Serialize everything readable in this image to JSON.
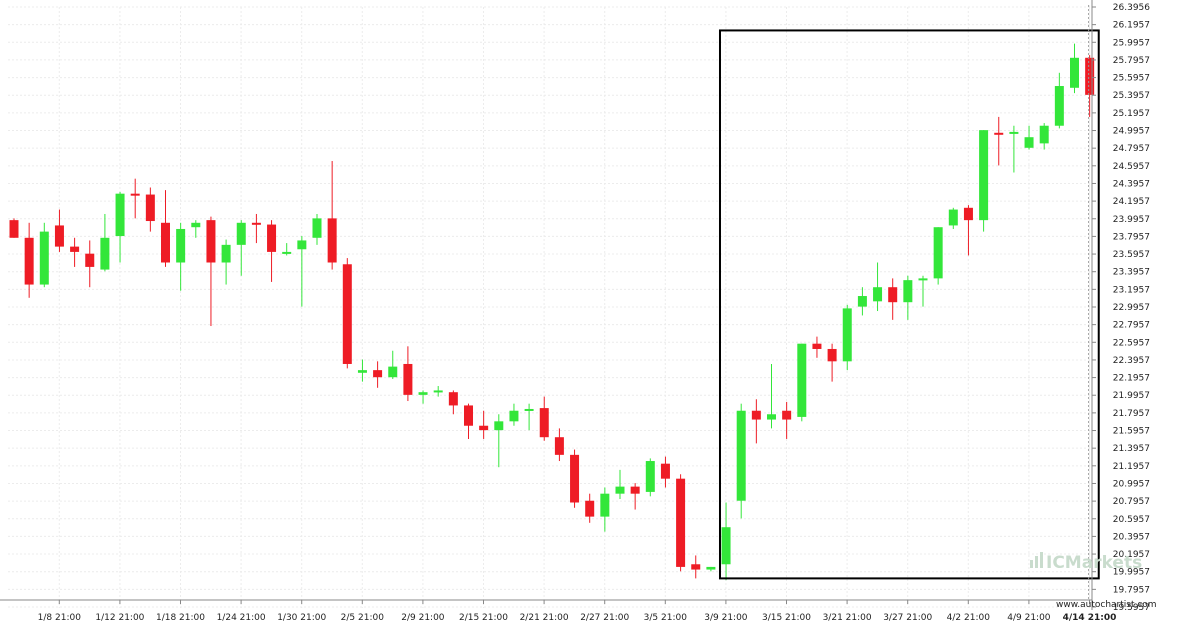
{
  "chart_data": {
    "type": "candlestick",
    "title": "",
    "xlabel": "",
    "ylabel": "",
    "ylim": [
      19.7957,
      26.3956
    ],
    "y_ticks": [
      "26.3956",
      "26.1957",
      "25.9957",
      "25.7957",
      "25.5957",
      "25.3957",
      "25.1957",
      "24.9957",
      "24.7957",
      "24.5957",
      "24.3957",
      "24.1957",
      "23.9957",
      "23.7957",
      "23.5957",
      "23.3957",
      "23.1957",
      "22.9957",
      "22.7957",
      "22.5957",
      "22.3957",
      "22.1957",
      "21.9957",
      "21.7957",
      "21.5957",
      "21.3957",
      "21.1957",
      "20.9957",
      "20.7957",
      "20.5957",
      "20.3957",
      "20.1957",
      "19.9957",
      "19.7957",
      "19.5957"
    ],
    "x_ticks": [
      "1/8 21:00",
      "1/12 21:00",
      "1/18 21:00",
      "1/24 21:00",
      "1/30 21:00",
      "2/5 21:00",
      "2/9 21:00",
      "2/15 21:00",
      "2/21 21:00",
      "2/27 21:00",
      "3/5 21:00",
      "3/9 21:00",
      "3/15 21:00",
      "3/21 21:00",
      "3/27 21:00",
      "4/2 21:00",
      "4/9 21:00",
      "4/14 21:00"
    ],
    "x_tick_index": [
      2,
      6,
      10,
      14,
      18,
      22,
      26,
      30,
      34,
      38,
      42,
      46,
      50,
      54,
      58,
      62,
      66,
      70
    ],
    "highlight_x_tick": "4/14 21:00",
    "candles": [
      {
        "o": 23.98,
        "h": 24.0,
        "l": 23.78,
        "c": 23.78
      },
      {
        "o": 23.78,
        "h": 23.95,
        "l": 23.1,
        "c": 23.25
      },
      {
        "o": 23.25,
        "h": 23.95,
        "l": 23.22,
        "c": 23.85
      },
      {
        "o": 23.92,
        "h": 24.1,
        "l": 23.62,
        "c": 23.68
      },
      {
        "o": 23.68,
        "h": 23.78,
        "l": 23.45,
        "c": 23.62
      },
      {
        "o": 23.6,
        "h": 23.75,
        "l": 23.22,
        "c": 23.45
      },
      {
        "o": 23.42,
        "h": 24.05,
        "l": 23.4,
        "c": 23.78
      },
      {
        "o": 23.8,
        "h": 24.3,
        "l": 23.5,
        "c": 24.28
      },
      {
        "o": 24.28,
        "h": 24.45,
        "l": 24.0,
        "c": 24.27
      },
      {
        "o": 24.27,
        "h": 24.35,
        "l": 23.85,
        "c": 23.97
      },
      {
        "o": 23.95,
        "h": 24.32,
        "l": 23.45,
        "c": 23.5
      },
      {
        "o": 23.5,
        "h": 23.95,
        "l": 23.18,
        "c": 23.88
      },
      {
        "o": 23.9,
        "h": 23.98,
        "l": 23.78,
        "c": 23.95
      },
      {
        "o": 23.98,
        "h": 24.02,
        "l": 22.78,
        "c": 23.5
      },
      {
        "o": 23.5,
        "h": 23.76,
        "l": 23.25,
        "c": 23.7
      },
      {
        "o": 23.7,
        "h": 23.98,
        "l": 23.35,
        "c": 23.95
      },
      {
        "o": 23.95,
        "h": 24.05,
        "l": 23.72,
        "c": 23.93
      },
      {
        "o": 23.93,
        "h": 23.98,
        "l": 23.28,
        "c": 23.62
      },
      {
        "o": 23.6,
        "h": 23.72,
        "l": 23.58,
        "c": 23.62
      },
      {
        "o": 23.65,
        "h": 23.8,
        "l": 23.0,
        "c": 23.75
      },
      {
        "o": 23.78,
        "h": 24.05,
        "l": 23.7,
        "c": 24.0
      },
      {
        "o": 24.0,
        "h": 24.65,
        "l": 23.42,
        "c": 23.5
      },
      {
        "o": 23.48,
        "h": 23.55,
        "l": 22.3,
        "c": 22.35
      },
      {
        "o": 22.25,
        "h": 22.4,
        "l": 22.15,
        "c": 22.28
      },
      {
        "o": 22.28,
        "h": 22.38,
        "l": 22.08,
        "c": 22.2
      },
      {
        "o": 22.2,
        "h": 22.5,
        "l": 22.18,
        "c": 22.32
      },
      {
        "o": 22.35,
        "h": 22.55,
        "l": 21.93,
        "c": 22.0
      },
      {
        "o": 22.0,
        "h": 22.05,
        "l": 21.9,
        "c": 22.03
      },
      {
        "o": 22.03,
        "h": 22.1,
        "l": 21.98,
        "c": 22.05
      },
      {
        "o": 22.03,
        "h": 22.05,
        "l": 21.78,
        "c": 21.88
      },
      {
        "o": 21.88,
        "h": 21.9,
        "l": 21.5,
        "c": 21.65
      },
      {
        "o": 21.65,
        "h": 21.82,
        "l": 21.5,
        "c": 21.6
      },
      {
        "o": 21.6,
        "h": 21.78,
        "l": 21.18,
        "c": 21.7
      },
      {
        "o": 21.7,
        "h": 21.9,
        "l": 21.65,
        "c": 21.82
      },
      {
        "o": 21.82,
        "h": 21.9,
        "l": 21.6,
        "c": 21.84
      },
      {
        "o": 21.85,
        "h": 21.98,
        "l": 21.48,
        "c": 21.52
      },
      {
        "o": 21.52,
        "h": 21.62,
        "l": 21.25,
        "c": 21.32
      },
      {
        "o": 21.32,
        "h": 21.38,
        "l": 20.72,
        "c": 20.78
      },
      {
        "o": 20.8,
        "h": 20.88,
        "l": 20.55,
        "c": 20.62
      },
      {
        "o": 20.62,
        "h": 20.95,
        "l": 20.45,
        "c": 20.88
      },
      {
        "o": 20.88,
        "h": 21.15,
        "l": 20.82,
        "c": 20.96
      },
      {
        "o": 20.96,
        "h": 21.0,
        "l": 20.7,
        "c": 20.88
      },
      {
        "o": 20.9,
        "h": 21.28,
        "l": 20.85,
        "c": 21.25
      },
      {
        "o": 21.22,
        "h": 21.3,
        "l": 20.95,
        "c": 21.05
      },
      {
        "o": 21.05,
        "h": 21.1,
        "l": 20.0,
        "c": 20.05
      },
      {
        "o": 20.08,
        "h": 20.18,
        "l": 19.92,
        "c": 20.02
      },
      {
        "o": 20.02,
        "h": 20.05,
        "l": 20.0,
        "c": 20.05
      },
      {
        "o": 20.08,
        "h": 20.78,
        "l": 19.9,
        "c": 20.5
      },
      {
        "o": 20.8,
        "h": 21.9,
        "l": 20.6,
        "c": 21.82
      },
      {
        "o": 21.82,
        "h": 21.95,
        "l": 21.45,
        "c": 21.72
      },
      {
        "o": 21.72,
        "h": 22.35,
        "l": 21.62,
        "c": 21.78
      },
      {
        "o": 21.82,
        "h": 21.92,
        "l": 21.5,
        "c": 21.72
      },
      {
        "o": 21.75,
        "h": 22.58,
        "l": 21.7,
        "c": 22.58
      },
      {
        "o": 22.58,
        "h": 22.66,
        "l": 22.42,
        "c": 22.52
      },
      {
        "o": 22.52,
        "h": 22.58,
        "l": 22.15,
        "c": 22.38
      },
      {
        "o": 22.38,
        "h": 23.02,
        "l": 22.28,
        "c": 22.98
      },
      {
        "o": 23.0,
        "h": 23.22,
        "l": 22.9,
        "c": 23.12
      },
      {
        "o": 23.06,
        "h": 23.5,
        "l": 22.95,
        "c": 23.22
      },
      {
        "o": 23.22,
        "h": 23.32,
        "l": 22.85,
        "c": 23.05
      },
      {
        "o": 23.05,
        "h": 23.35,
        "l": 22.85,
        "c": 23.3
      },
      {
        "o": 23.3,
        "h": 23.35,
        "l": 23.0,
        "c": 23.32
      },
      {
        "o": 23.32,
        "h": 23.9,
        "l": 23.25,
        "c": 23.9
      },
      {
        "o": 23.92,
        "h": 24.12,
        "l": 23.88,
        "c": 24.1
      },
      {
        "o": 24.12,
        "h": 24.15,
        "l": 23.58,
        "c": 23.98
      },
      {
        "o": 23.98,
        "h": 25.0,
        "l": 23.85,
        "c": 25.0
      },
      {
        "o": 24.97,
        "h": 25.15,
        "l": 24.6,
        "c": 24.96
      },
      {
        "o": 24.96,
        "h": 25.05,
        "l": 24.52,
        "c": 24.98
      },
      {
        "o": 24.8,
        "h": 25.05,
        "l": 24.78,
        "c": 24.92
      },
      {
        "o": 24.85,
        "h": 25.08,
        "l": 24.78,
        "c": 25.05
      },
      {
        "o": 25.05,
        "h": 25.65,
        "l": 25.02,
        "c": 25.5
      },
      {
        "o": 25.48,
        "h": 25.98,
        "l": 25.42,
        "c": 25.82
      },
      {
        "o": 25.82,
        "h": 25.85,
        "l": 25.15,
        "c": 25.4
      }
    ],
    "highlight_box": {
      "x_start_index": 46.6,
      "x_end_index": 71.6,
      "y_low": 19.92,
      "y_high": 26.13
    },
    "up_color": "#33e63a",
    "down_color": "#ee1c25",
    "wick_color_up": "#33e63a",
    "wick_color_down": "#ee1c25"
  },
  "watermark": {
    "brand": "ICMarkets",
    "icon": "bars-icon",
    "color": "#c9dccd"
  },
  "site_url": "www.autochartist.com"
}
